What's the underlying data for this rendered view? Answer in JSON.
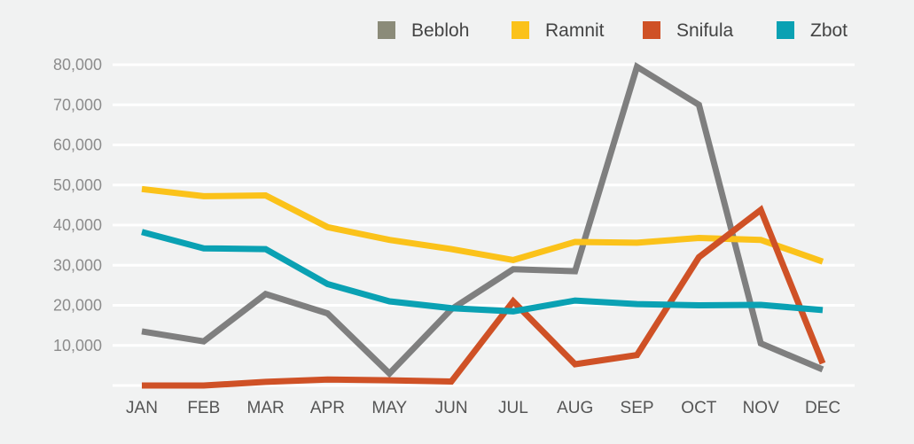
{
  "chart_data": {
    "type": "line",
    "title": "",
    "xlabel": "",
    "ylabel": "",
    "categories": [
      "JAN",
      "FEB",
      "MAR",
      "APR",
      "MAY",
      "JUN",
      "JUL",
      "AUG",
      "SEP",
      "OCT",
      "NOV",
      "DEC"
    ],
    "y_ticks": [
      "10,000",
      "20,000",
      "30,000",
      "40,000",
      "50,000",
      "60,000",
      "70,000",
      "80,000"
    ],
    "ylim": [
      0,
      80000
    ],
    "grid": true,
    "legend_position": "top-right",
    "series": [
      {
        "name": "Bebloh",
        "color": "#7f7f7f",
        "legend_color": "#8b8b79",
        "values": [
          13500,
          11000,
          22800,
          18000,
          3000,
          19000,
          29000,
          28500,
          79500,
          70000,
          10500,
          4000
        ]
      },
      {
        "name": "Ramnit",
        "color": "#fbc21a",
        "legend_color": "#fbc21a",
        "values": [
          49000,
          47200,
          47400,
          39500,
          36300,
          34000,
          31300,
          35800,
          35600,
          36800,
          36300,
          30900
        ]
      },
      {
        "name": "Snifula",
        "color": "#cf5126",
        "legend_color": "#cf5126",
        "values": [
          0,
          0,
          900,
          1500,
          1300,
          1000,
          21000,
          5300,
          7600,
          32000,
          43800,
          5500
        ]
      },
      {
        "name": "Zbot",
        "color": "#0aa1b3",
        "legend_color": "#0aa1b3",
        "values": [
          38300,
          34200,
          34000,
          25300,
          21000,
          19300,
          18500,
          21200,
          20300,
          20000,
          20100,
          18800
        ]
      }
    ]
  }
}
